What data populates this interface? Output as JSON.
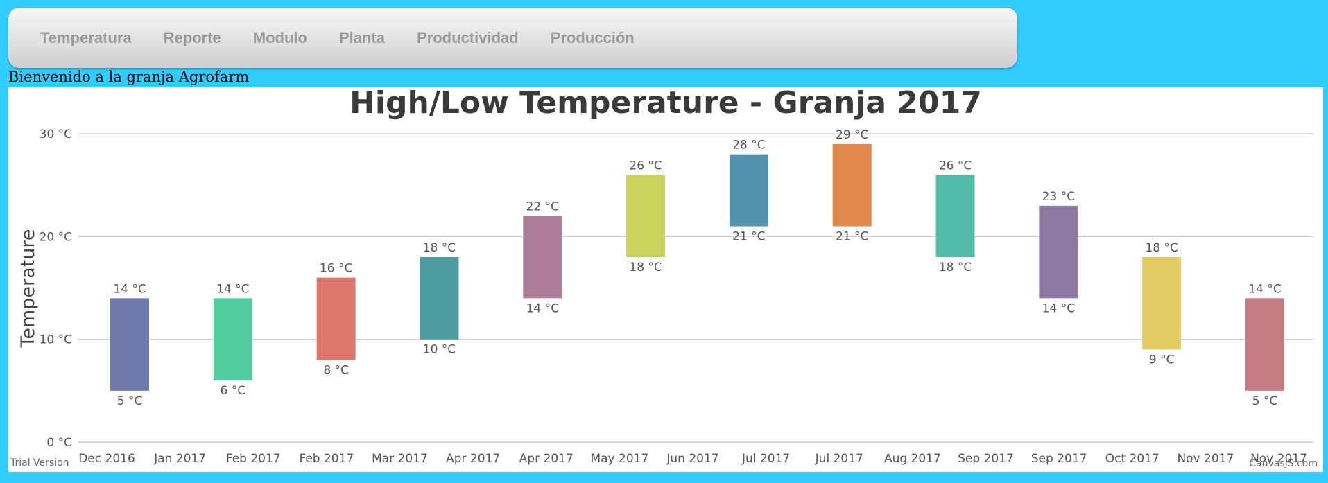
{
  "nav": {
    "items": [
      "Temperatura",
      "Reporte",
      "Modulo",
      "Planta",
      "Productividad",
      "Producción"
    ]
  },
  "welcome_text": "Bienvenido a la granja Agrofarm",
  "watermarks": {
    "left": "Trial Version",
    "right": "CanvasJS.com"
  },
  "colors": {
    "background": "#33ccff",
    "series": [
      "#6d78ad",
      "#51cda0",
      "#df7970",
      "#4c9ca0",
      "#ae7d99",
      "#c9d45c",
      "#5592ad",
      "#df874d",
      "#52bca8",
      "#8e7aa3",
      "#e3cb64",
      "#c77b85"
    ]
  },
  "chart_data": {
    "type": "bar",
    "subtype": "range-column",
    "title": "High/Low Temperature - Granja 2017",
    "ylabel": "Temperature",
    "xlabel": "",
    "ylim": [
      0,
      30
    ],
    "yticks": [
      0,
      10,
      20,
      30
    ],
    "ytick_labels": [
      "0 °C",
      "10 °C",
      "20 °C",
      "30 °C"
    ],
    "xtick_labels": [
      "Dec 2016",
      "Jan 2017",
      "Feb 2017",
      "Feb 2017",
      "Mar 2017",
      "Apr 2017",
      "Apr 2017",
      "May 2017",
      "Jun 2017",
      "Jul 2017",
      "Jul 2017",
      "Aug 2017",
      "Sep 2017",
      "Sep 2017",
      "Oct 2017",
      "Nov 2017",
      "Nov 2017"
    ],
    "unit": "°C",
    "grid": true,
    "bars": [
      {
        "low": 5,
        "high": 14,
        "low_label": "5 °C",
        "high_label": "14 °C"
      },
      {
        "low": 6,
        "high": 14,
        "low_label": "6 °C",
        "high_label": "14 °C"
      },
      {
        "low": 8,
        "high": 16,
        "low_label": "8 °C",
        "high_label": "16 °C"
      },
      {
        "low": 10,
        "high": 18,
        "low_label": "10 °C",
        "high_label": "18 °C"
      },
      {
        "low": 14,
        "high": 22,
        "low_label": "14 °C",
        "high_label": "22 °C"
      },
      {
        "low": 18,
        "high": 26,
        "low_label": "18 °C",
        "high_label": "26 °C"
      },
      {
        "low": 21,
        "high": 28,
        "low_label": "21 °C",
        "high_label": "28 °C"
      },
      {
        "low": 21,
        "high": 29,
        "low_label": "21 °C",
        "high_label": "29 °C"
      },
      {
        "low": 18,
        "high": 26,
        "low_label": "18 °C",
        "high_label": "26 °C"
      },
      {
        "low": 14,
        "high": 23,
        "low_label": "14 °C",
        "high_label": "23 °C"
      },
      {
        "low": 9,
        "high": 18,
        "low_label": "9 °C",
        "high_label": "18 °C"
      },
      {
        "low": 5,
        "high": 14,
        "low_label": "5 °C",
        "high_label": "14 °C"
      }
    ]
  }
}
